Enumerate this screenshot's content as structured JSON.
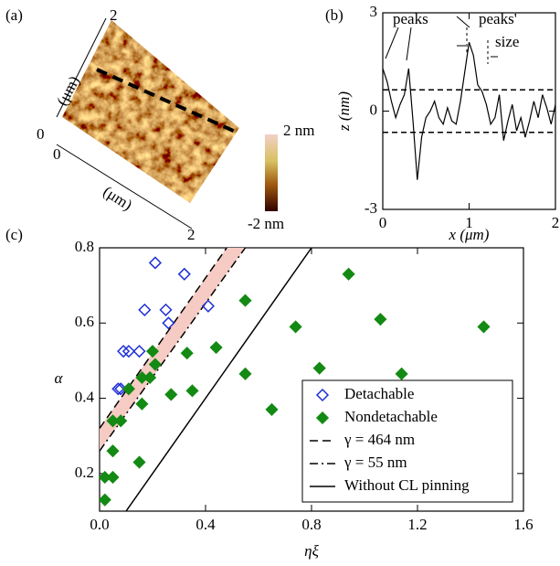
{
  "panel_a": {
    "label": "(a)",
    "y_axis_end": "2",
    "y_axis_origin": "0",
    "x_axis_origin": "0",
    "x_axis_end": "2",
    "y_unit": "(μm)",
    "x_unit": "(μm)",
    "colorbar_max": "2 nm",
    "colorbar_min": "-2 nm"
  },
  "chart_data": [
    {
      "type": "line",
      "panel_label": "(b)",
      "xlabel": "x (μm)",
      "ylabel": "z (nm)",
      "x": [
        0,
        0.05,
        0.1,
        0.15,
        0.2,
        0.25,
        0.3,
        0.35,
        0.4,
        0.45,
        0.5,
        0.55,
        0.6,
        0.65,
        0.7,
        0.75,
        0.8,
        0.85,
        0.9,
        0.95,
        1.0,
        1.05,
        1.1,
        1.15,
        1.2,
        1.25,
        1.3,
        1.35,
        1.4,
        1.45,
        1.5,
        1.55,
        1.6,
        1.65,
        1.7,
        1.75,
        1.8,
        1.85,
        1.9,
        1.95,
        2.0
      ],
      "series": [
        {
          "color": "#000000",
          "values": [
            1.3,
            0.9,
            0.3,
            -0.2,
            0.2,
            0.5,
            1.3,
            -0.3,
            -2.1,
            -0.8,
            -0.2,
            0.0,
            0.3,
            -0.2,
            -0.4,
            0.1,
            -0.3,
            -0.4,
            0.3,
            1.2,
            2.1,
            1.7,
            0.8,
            0.6,
            0.2,
            -0.4,
            -0.2,
            0.5,
            -0.9,
            -0.3,
            0.2,
            -0.6,
            -0.2,
            -0.8,
            -0.3,
            0.3,
            -0.2,
            0.5,
            0.1,
            -0.4,
            0.2
          ]
        }
      ],
      "xlim": [
        0,
        2
      ],
      "ylim": [
        -3,
        3
      ],
      "xticks": [
        0,
        1,
        2
      ],
      "yticks": [
        -3,
        0,
        3
      ],
      "hlines": [
        0.65,
        -0.65
      ],
      "annotations": [
        "peaks",
        "peaks'",
        "size"
      ]
    },
    {
      "type": "scatter",
      "panel_label": "(c)",
      "xlabel": "ηξ",
      "ylabel": "α",
      "xlim": [
        0,
        1.6
      ],
      "ylim": [
        0.1,
        0.8
      ],
      "xticks": [
        {
          "value": 0,
          "label": "0.0"
        },
        0.4,
        0.8,
        1.2,
        1.6
      ],
      "yticks": [
        0.2,
        0.4,
        0.6,
        0.8
      ],
      "legend": "lower right",
      "band_color": "#f6cbc3",
      "series": [
        {
          "name": "Detachable",
          "color": "#1f2fd6",
          "marker": "open-diamond",
          "x": [
            0.21,
            0.32,
            0.17,
            0.25,
            0.41,
            0.26,
            0.09,
            0.11,
            0.15,
            0.07,
            0.08
          ],
          "values": [
            0.76,
            0.73,
            0.635,
            0.635,
            0.645,
            0.6,
            0.525,
            0.525,
            0.525,
            0.425,
            0.425
          ]
        },
        {
          "name": "Nondetachable",
          "color": "#138a13",
          "marker": "diamond",
          "x": [
            0.94,
            0.55,
            0.74,
            1.06,
            1.45,
            0.2,
            0.33,
            0.44,
            0.21,
            0.55,
            0.83,
            1.14,
            0.16,
            0.19,
            0.11,
            0.27,
            0.35,
            0.16,
            0.65,
            0.05,
            0.08,
            0.15,
            0.05,
            0.02,
            0.05,
            0.02
          ],
          "values": [
            0.73,
            0.66,
            0.59,
            0.61,
            0.59,
            0.525,
            0.52,
            0.535,
            0.49,
            0.465,
            0.48,
            0.465,
            0.455,
            0.455,
            0.425,
            0.41,
            0.42,
            0.385,
            0.37,
            0.34,
            0.34,
            0.23,
            0.26,
            0.19,
            0.19,
            0.13
          ]
        },
        {
          "name": "γ = 464 nm",
          "color": "#000000",
          "dash": "dashed",
          "x": [
            0,
            0.48
          ],
          "values": [
            0.32,
            0.8
          ]
        },
        {
          "name": "γ = 55 nm",
          "color": "#000000",
          "dash": "dashdot",
          "x": [
            0,
            0.55
          ],
          "values": [
            0.26,
            0.8
          ]
        },
        {
          "name": "Without CL pinning",
          "color": "#000000",
          "dash": "solid",
          "x": [
            0.1,
            0.8
          ],
          "values": [
            0.1,
            0.8
          ]
        }
      ]
    }
  ]
}
